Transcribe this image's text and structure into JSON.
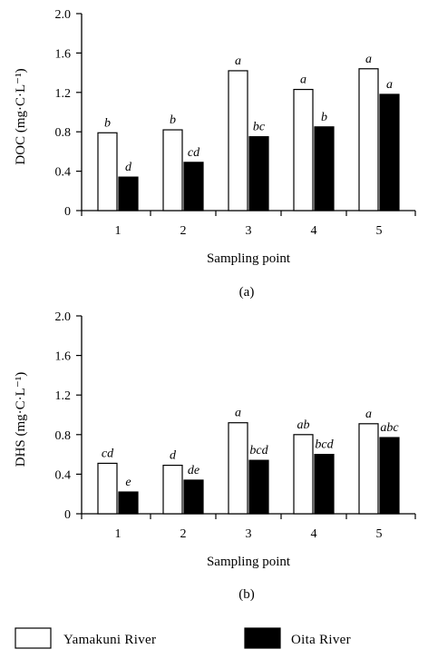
{
  "chart_data": [
    {
      "type": "bar",
      "panel_label": "(a)",
      "categories": [
        "1",
        "2",
        "3",
        "4",
        "5"
      ],
      "xlabel": "Sampling point",
      "ylabel": "DOC (mg·C·L⁻¹)",
      "ylim": [
        0,
        2.0
      ],
      "yticks": [
        "0",
        "0.4",
        "0.8",
        "1.2",
        "1.6",
        "2.0"
      ],
      "grid": false,
      "series": [
        {
          "name": "Yamakuni River",
          "color": "#ffffff",
          "values": [
            0.79,
            0.82,
            1.42,
            1.23,
            1.44
          ],
          "labels": [
            "b",
            "b",
            "a",
            "a",
            "a"
          ]
        },
        {
          "name": "Oita River",
          "color": "#000000",
          "values": [
            0.34,
            0.49,
            0.75,
            0.85,
            1.18
          ],
          "labels": [
            "d",
            "cd",
            "bc",
            "b",
            "a"
          ]
        }
      ]
    },
    {
      "type": "bar",
      "panel_label": "(b)",
      "categories": [
        "1",
        "2",
        "3",
        "4",
        "5"
      ],
      "xlabel": "Sampling point",
      "ylabel": "DHS (mg·C·L⁻¹)",
      "ylim": [
        0,
        2.0
      ],
      "yticks": [
        "0",
        "0.4",
        "0.8",
        "1.2",
        "1.6",
        "2.0"
      ],
      "grid": false,
      "series": [
        {
          "name": "Yamakuni River",
          "color": "#ffffff",
          "values": [
            0.51,
            0.49,
            0.92,
            0.8,
            0.91
          ],
          "labels": [
            "cd",
            "d",
            "a",
            "ab",
            "a"
          ]
        },
        {
          "name": "Oita River",
          "color": "#000000",
          "values": [
            0.22,
            0.34,
            0.54,
            0.6,
            0.77
          ],
          "labels": [
            "e",
            "de",
            "bcd",
            "bcd",
            "abc"
          ]
        }
      ]
    }
  ],
  "legend": {
    "placement": "bottom",
    "items": [
      {
        "label": "Yamakuni River",
        "color": "#ffffff"
      },
      {
        "label": "Oita River",
        "color": "#000000"
      }
    ]
  }
}
